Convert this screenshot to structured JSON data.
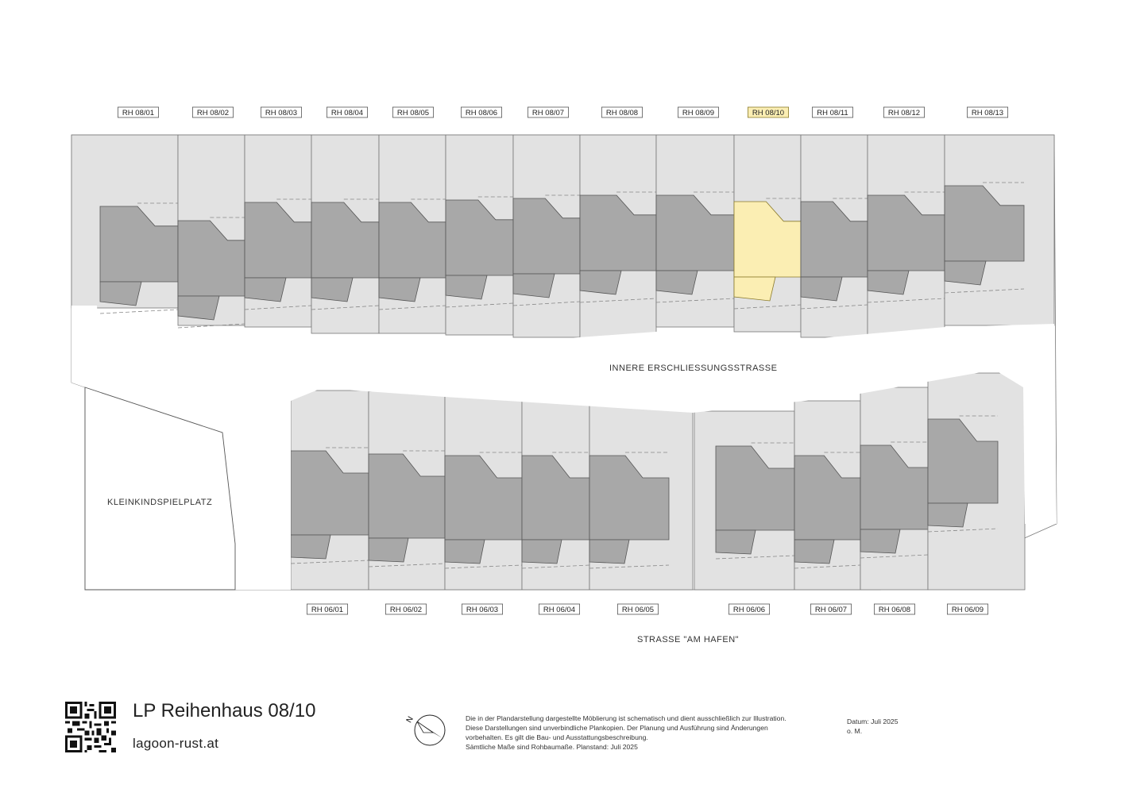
{
  "labels_top": [
    "RH 08/01",
    "RH 08/02",
    "RH 08/03",
    "RH 08/04",
    "RH 08/05",
    "RH 08/06",
    "RH 08/07",
    "RH 08/08",
    "RH 08/09",
    "RH 08/10",
    "RH 08/11",
    "RH 08/12",
    "RH 08/13"
  ],
  "labels_bottom": [
    "RH 06/01",
    "RH 06/02",
    "RH 06/03",
    "RH 06/04",
    "RH 06/05",
    "RH 06/06",
    "RH 06/07",
    "RH 06/08",
    "RH 06/09"
  ],
  "highlighted_unit": "RH 08/10",
  "areas": {
    "inner_road": "INNERE ERSCHLIESSUNGSSTRASSE",
    "playground": "KLEINKINDSPIELPLATZ",
    "street": "STRASSE \"AM HAFEN\""
  },
  "footer": {
    "title": "LP Reihenhaus 08/10",
    "site": "lagoon-rust.at",
    "compass_letter": "N",
    "disclaimer": [
      "Die in der Plandarstellung dargestellte Möblierung ist schematisch und dient ausschließlich zur Illustration.",
      "Diese Darstellungen sind unverbindliche Plankopien. Der Planung und Ausführung sind Änderungen",
      "vorbehalten. Es gilt die Bau- und Ausstattungsbeschreibung.",
      "Sämtliche Maße sind Rohbaumaße. Planstand: Juli 2025"
    ],
    "date": "Datum: Juli 2025",
    "scale": "o. M."
  },
  "colors": {
    "plot": "#e2e2e2",
    "house": "#a8a8a8",
    "highlight": "#fbeeb3"
  }
}
